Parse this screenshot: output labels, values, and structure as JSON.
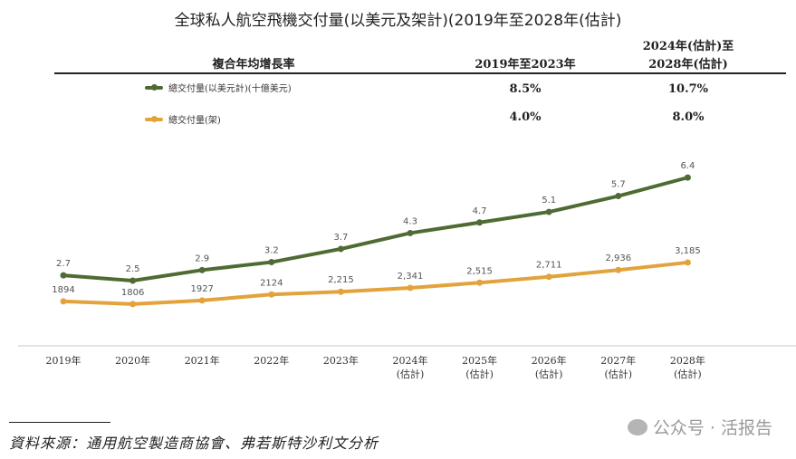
{
  "title": "全球私人航空飛機交付量(以美元及架計)(2019年至2028年(估計)",
  "table": {
    "header": "複合年均增長率",
    "col1": "2019年至2023年",
    "col2_line1": "2024年(估計)至",
    "col2_line2": "2028年(估計)",
    "rows": [
      {
        "label": "總交付量(以美元計)(十億美元)",
        "v1": "8.5%",
        "v2": "10.7%"
      },
      {
        "label": "總交付量(架)",
        "v1": "4.0%",
        "v2": "8.0%"
      }
    ]
  },
  "chart_data": {
    "type": "line",
    "categories": [
      "2019年",
      "2020年",
      "2021年",
      "2022年",
      "2023年",
      "2024年\n(估計)",
      "2025年\n(估計)",
      "2026年\n(估計)",
      "2027年\n(估計)",
      "2028年\n(估計)"
    ],
    "series": [
      {
        "name": "總交付量(以美元計)(十億美元)",
        "color": "#4f6b34",
        "values": [
          2.7,
          2.5,
          2.9,
          3.2,
          3.7,
          4.3,
          4.7,
          5.1,
          5.7,
          6.4
        ],
        "labels": [
          "2.7",
          "2.5",
          "2.9",
          "3.2",
          "3.7",
          "4.3",
          "4.7",
          "5.1",
          "5.7",
          "6.4"
        ]
      },
      {
        "name": "總交付量(架)",
        "color": "#e3a33c",
        "values": [
          1894,
          1806,
          1927,
          2124,
          2215,
          2341,
          2515,
          2711,
          2936,
          3185
        ],
        "labels": [
          "1894",
          "1806",
          "1927",
          "2124",
          "2,215",
          "2,341",
          "2,515",
          "2,711",
          "2,936",
          "3,185"
        ]
      }
    ],
    "grid": false,
    "axis_color": "#dcdcdc"
  },
  "source": "資料來源：通用航空製造商協會、弗若斯特沙利文分析",
  "watermark": "公众号 · 活报告"
}
